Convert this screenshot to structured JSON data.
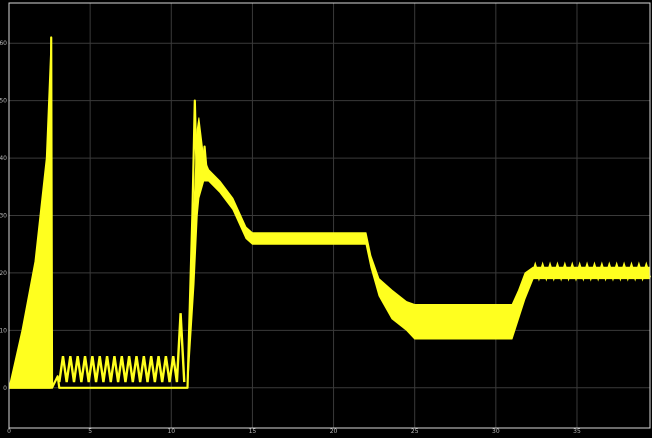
{
  "colors": {
    "background": "#000000",
    "axes_frame": "#d9d9d9",
    "grid": "#3a3a3a",
    "signal": "#ffff1f",
    "tick_text": "#b8b8b8"
  },
  "chart_data": {
    "type": "line",
    "grid": true,
    "xlim": [
      0,
      39.5
    ],
    "ylim": [
      -7,
      67
    ],
    "xticks": [
      {
        "value": 0,
        "label": "0"
      },
      {
        "value": 5,
        "label": "5"
      },
      {
        "value": 10,
        "label": "10"
      },
      {
        "value": 15,
        "label": "15"
      },
      {
        "value": 20,
        "label": "20"
      },
      {
        "value": 25,
        "label": "25"
      },
      {
        "value": 30,
        "label": "30"
      },
      {
        "value": 35,
        "label": "35"
      }
    ],
    "yticks": [
      {
        "value": 0,
        "label": "0"
      },
      {
        "value": 10,
        "label": "10"
      },
      {
        "value": 20,
        "label": "20"
      },
      {
        "value": 30,
        "label": "30"
      },
      {
        "value": 40,
        "label": "40"
      },
      {
        "value": 50,
        "label": "50"
      },
      {
        "value": 60,
        "label": "60"
      }
    ],
    "series": [
      {
        "style": "envelope",
        "upper": [
          [
            0,
            0
          ],
          [
            0.8,
            10
          ],
          [
            1.6,
            22
          ],
          [
            2.3,
            40
          ],
          [
            2.6,
            61
          ],
          [
            2.65,
            0
          ]
        ],
        "lower": [
          [
            0,
            0
          ],
          [
            1.0,
            0
          ],
          [
            2.3,
            0
          ],
          [
            2.6,
            0
          ],
          [
            2.65,
            0
          ]
        ]
      },
      {
        "style": "envelope",
        "upper": [
          [
            11.0,
            0
          ],
          [
            11.4,
            32
          ],
          [
            11.6,
            45
          ],
          [
            11.7,
            47
          ],
          [
            12.0,
            40
          ],
          [
            12.3,
            38
          ],
          [
            13.0,
            36
          ],
          [
            13.8,
            33
          ],
          [
            14.6,
            28
          ],
          [
            15.0,
            27
          ],
          [
            22.0,
            27
          ],
          [
            22.3,
            23
          ],
          [
            22.8,
            19
          ],
          [
            23.6,
            17
          ],
          [
            24.5,
            15
          ],
          [
            25.0,
            14.5
          ],
          [
            31.0,
            14.5
          ],
          [
            31.4,
            17
          ],
          [
            31.8,
            20
          ],
          [
            32.3,
            21
          ],
          [
            39.5,
            21
          ]
        ],
        "lower": [
          [
            11.0,
            0
          ],
          [
            11.4,
            18
          ],
          [
            11.6,
            30
          ],
          [
            11.7,
            33
          ],
          [
            12.0,
            36
          ],
          [
            12.3,
            36
          ],
          [
            13.0,
            34
          ],
          [
            13.8,
            31
          ],
          [
            14.6,
            26
          ],
          [
            15.0,
            25
          ],
          [
            22.0,
            25
          ],
          [
            22.3,
            21
          ],
          [
            22.8,
            16
          ],
          [
            23.6,
            12
          ],
          [
            24.5,
            10
          ],
          [
            25.0,
            8.5
          ],
          [
            31.0,
            8.5
          ],
          [
            31.4,
            12
          ],
          [
            31.8,
            15.5
          ],
          [
            32.3,
            19
          ],
          [
            39.5,
            19
          ]
        ]
      },
      {
        "style": "line",
        "points": [
          [
            0,
            0
          ],
          [
            2.55,
            0
          ],
          [
            2.6,
            61
          ],
          [
            2.65,
            0
          ],
          [
            3.0,
            2.0
          ],
          [
            3.1,
            0
          ],
          [
            11.0,
            0
          ],
          [
            11.3,
            30
          ],
          [
            11.45,
            50
          ],
          [
            11.6,
            33
          ],
          [
            11.75,
            44
          ],
          [
            11.9,
            37
          ],
          [
            12.05,
            42
          ],
          [
            12.2,
            37
          ]
        ]
      },
      {
        "style": "oscillation",
        "x_start": 3.1,
        "x_end": 10.8,
        "cycles": 17,
        "base": 1,
        "peak": 5.5,
        "final_peak": 13
      },
      {
        "style": "oscillation",
        "x_start": 32.2,
        "x_end": 39.5,
        "cycles": 16,
        "base": 19.2,
        "peak": 21.3
      }
    ]
  }
}
